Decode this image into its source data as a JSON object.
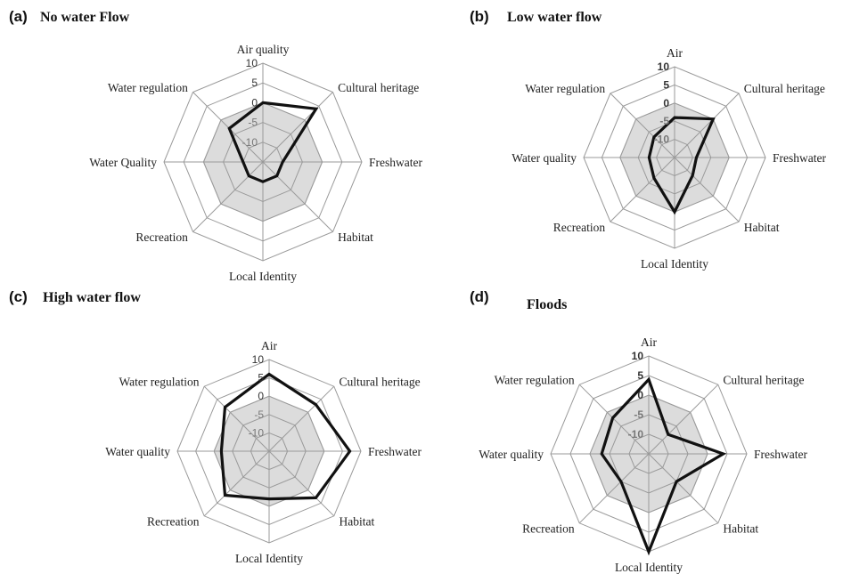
{
  "chart_data": [
    {
      "type": "radar",
      "panel": "(a)",
      "title": "No water Flow",
      "axes": [
        "Air quality",
        "Cultural heritage",
        "Freshwater",
        "Habitat",
        "Local Identity",
        "Recreation",
        "Water Quality",
        "Water regulation"
      ],
      "ticks": [
        "10",
        "5",
        "0",
        "-5",
        "-10"
      ],
      "rlim": [
        -15,
        10
      ],
      "shaded_level": 0,
      "series": [
        {
          "values": [
            0,
            4,
            -10,
            -10,
            -10,
            -10,
            -10,
            -3
          ]
        }
      ]
    },
    {
      "type": "radar",
      "panel": "(b)",
      "title": "Low water flow",
      "axes": [
        "Air",
        "Cultural heritage",
        "Freshwater",
        "Habitat",
        "Local Identity",
        "Recreation",
        "Water quality",
        "Water regulation"
      ],
      "ticks": [
        "10",
        "5",
        "0",
        "-5",
        "-10"
      ],
      "rlim": [
        -15,
        10
      ],
      "shaded_level": 0,
      "series": [
        {
          "values": [
            -4,
            0,
            -9,
            -8,
            0,
            -7,
            -8,
            -7
          ]
        }
      ]
    },
    {
      "type": "radar",
      "panel": "(c)",
      "title": "High water flow",
      "axes": [
        "Air",
        "Cultural heritage",
        "Freshwater",
        "Habitat",
        "Local Identity",
        "Recreation",
        "Water quality",
        "Water regulation"
      ],
      "ticks": [
        "10",
        "5",
        "0",
        "-5",
        "-10"
      ],
      "rlim": [
        -15,
        10
      ],
      "shaded_level": 0,
      "series": [
        {
          "values": [
            6,
            3,
            7,
            3,
            -2,
            2,
            -2,
            2
          ]
        }
      ]
    },
    {
      "type": "radar",
      "panel": "(d)",
      "title": "Floods",
      "axes": [
        "Air",
        "Cultural heritage",
        "Freshwater",
        "Habitat",
        "Local Identity",
        "Recreation",
        "Water quality",
        "Water regulation"
      ],
      "ticks": [
        "10",
        "5",
        "0",
        "-5",
        "-10"
      ],
      "rlim": [
        -15,
        10
      ],
      "shaded_level": 0,
      "series": [
        {
          "values": [
            4,
            -8,
            4,
            -5,
            10,
            -5,
            -3,
            -2
          ]
        }
      ]
    }
  ]
}
